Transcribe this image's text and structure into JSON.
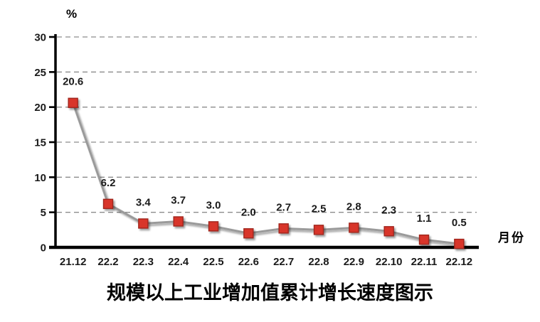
{
  "chart_data": {
    "type": "line",
    "title": "规模以上工业增加值累计增长速度图示",
    "xlabel": "月份",
    "ylabel_unit": "%",
    "categories": [
      "21.12",
      "22.2",
      "22.3",
      "22.4",
      "22.5",
      "22.6",
      "22.7",
      "22.8",
      "22.9",
      "22.10",
      "22.11",
      "22.12"
    ],
    "values": [
      20.6,
      6.2,
      3.4,
      3.7,
      3.0,
      2.0,
      2.7,
      2.5,
      2.8,
      2.3,
      1.1,
      0.5
    ],
    "ylim": [
      0,
      30
    ],
    "yticks": [
      0,
      5,
      10,
      15,
      20,
      25,
      30
    ],
    "grid": "horizontal-dashed",
    "legend": "none",
    "data_labels": "above-points",
    "colors": {
      "marker_fill": "#d8342c",
      "marker_border": "#a0261f",
      "line": "#9a9a9a",
      "axis": "#000000",
      "gridline": "#8c8c8c",
      "text": "#1a1a1a"
    }
  }
}
